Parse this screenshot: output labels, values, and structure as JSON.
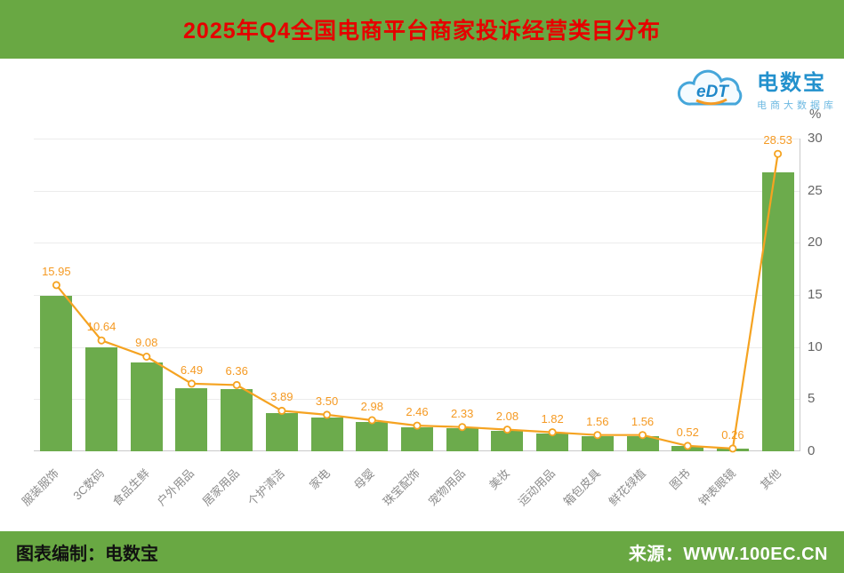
{
  "theme": {
    "green": "#69a843",
    "title_red": "#e60000"
  },
  "header": {
    "title": "2025年Q4全国电商平台商家投诉经营类目分布"
  },
  "logo": {
    "cloud_text": "eDT",
    "name": "电数宝",
    "subtitle": "电商大数据库",
    "blue": "#2391cd",
    "light_blue": "#6db9e2",
    "orange": "#f59a23"
  },
  "footer": {
    "left": "图表编制：电数宝",
    "right": "来源：WWW.100EC.CN"
  },
  "chart_data": {
    "type": "bar",
    "overlay": "line",
    "title": "2025年Q4全国电商平台商家投诉经营类目分布",
    "categories": [
      "服装服饰",
      "3C数码",
      "食品生鲜",
      "户外用品",
      "居家用品",
      "个护清洁",
      "家电",
      "母婴",
      "珠宝配饰",
      "宠物用品",
      "美妆",
      "运动用品",
      "箱包皮具",
      "鲜花绿植",
      "图书",
      "钟表眼镜",
      "其他"
    ],
    "values": [
      15.95,
      10.64,
      9.08,
      6.49,
      6.36,
      3.89,
      3.5,
      2.98,
      2.46,
      2.33,
      2.08,
      1.82,
      1.56,
      1.56,
      0.52,
      0.26,
      28.53
    ],
    "labels": [
      "15.95",
      "10.64",
      "9.08",
      "6.49",
      "6.36",
      "3.89",
      "3.50",
      "2.98",
      "2.46",
      "2.33",
      "2.08",
      "1.82",
      "1.56",
      "1.56",
      "0.52",
      "0.26",
      "28.53"
    ],
    "unit": "%",
    "xlabel": "",
    "ylabel": "%",
    "ylim": [
      0,
      30
    ],
    "bar_ylim": [
      0,
      32
    ],
    "yticks": [
      0,
      5,
      10,
      15,
      20,
      25,
      30
    ],
    "grid": true,
    "y_axis_side": "right",
    "legend": "none",
    "colors": {
      "bar": "#6cab4c",
      "line": "#f5a321",
      "value_label": "#f59a23",
      "axis_text": "#666666",
      "x_label": "#8c8c8c"
    }
  }
}
